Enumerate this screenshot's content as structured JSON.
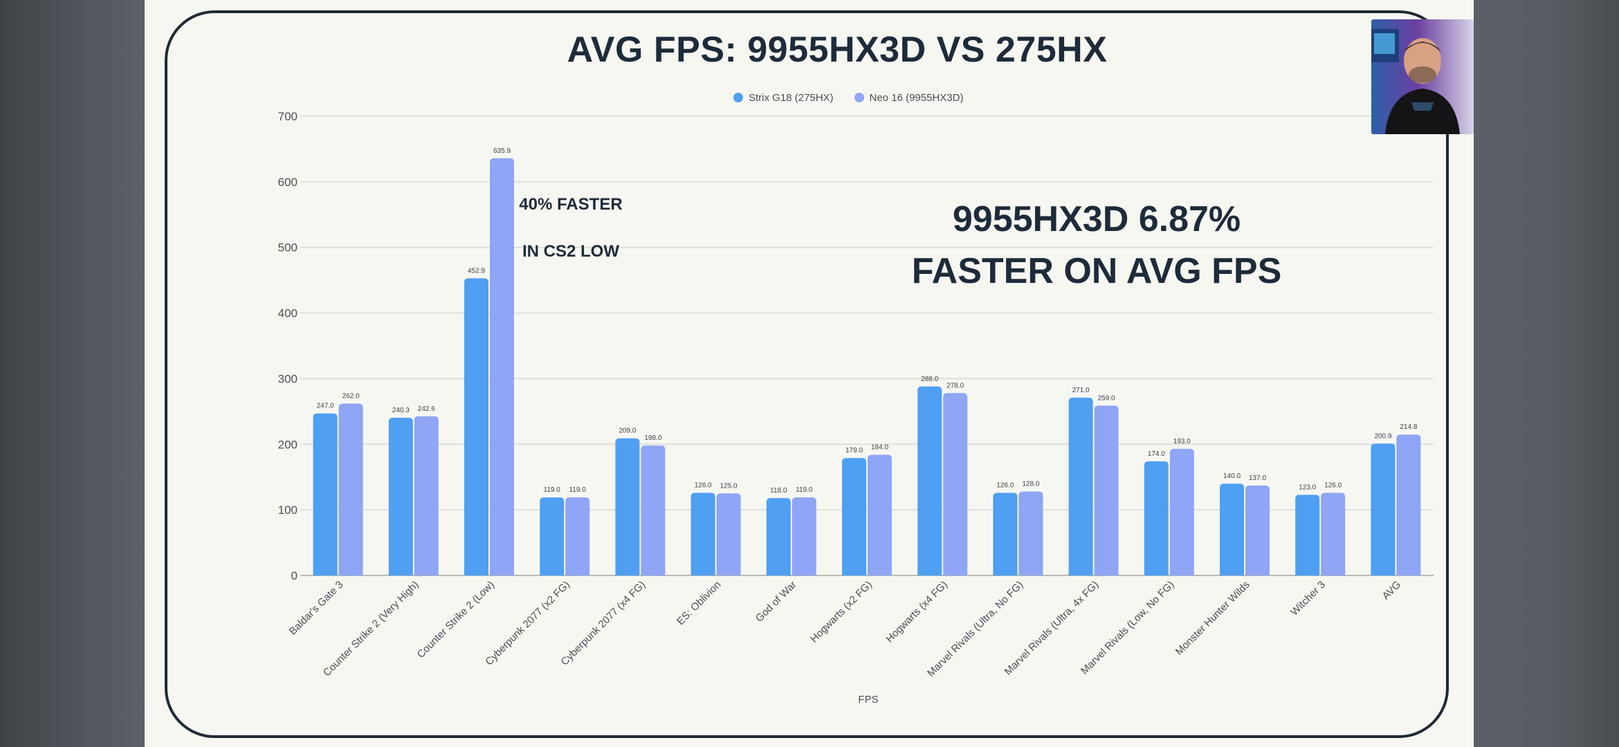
{
  "colors": {
    "strix": "#4f9ff2",
    "neo": "#8fa5f5",
    "text_dark": "#1d2b3a",
    "grid": "#dedfdc",
    "tick": "#4a4d52"
  },
  "slide": {
    "title": "AVG FPS: 9955HX3D VS 275HX",
    "annotation_line1": "40% FASTER",
    "annotation_line2": "IN CS2 LOW",
    "callout": "9955HX3D 6.87% FASTER ON AVG FPS"
  },
  "chart_data": {
    "type": "bar",
    "title": "",
    "xlabel": "FPS",
    "ylabel": "",
    "ylim": [
      0,
      700
    ],
    "yticks": [
      0,
      100,
      200,
      300,
      400,
      500,
      600,
      700
    ],
    "grid": true,
    "legend_position": "top",
    "categories": [
      "Baldar's Gate 3",
      "Counter Strike 2 (Very High)",
      "Counter Strike 2 (Low)",
      "Cyberpunk 2077 (x2 FG)",
      "Cyberpunk 2077 (x4 FG)",
      "ES: Oblivion",
      "God of War",
      "Hogwarts (x2 FG)",
      "Hogwarts (x4 FG)",
      "Marvel Rivals (Ultra, No FG)",
      "Marvel Rivals (Ultra, 4x FG)",
      "Marvel Rivals (Low, No FG)",
      "Monster Hunter Wilds",
      "Witcher 3",
      "AVG"
    ],
    "series": [
      {
        "name": "Strix G18 (275HX)",
        "color": "#4f9ff2",
        "values": [
          247.0,
          240.3,
          452.9,
          119.0,
          209.0,
          126.0,
          118.0,
          179.0,
          288.0,
          126.0,
          271.0,
          174.0,
          140.0,
          123.0,
          200.9
        ],
        "labels": [
          "247.0",
          "240.3",
          "452.9",
          "119.0",
          "209.0",
          "126.0",
          "118.0",
          "179.0",
          "288.0",
          "126.0",
          "271.0",
          "174.0",
          "140.0",
          "123.0",
          "200.9"
        ]
      },
      {
        "name": "Neo 16 (9955HX3D)",
        "color": "#8fa5f5",
        "values": [
          262.0,
          242.6,
          635.9,
          119.0,
          198.0,
          125.0,
          119.0,
          184.0,
          278.0,
          128.0,
          259.0,
          193.0,
          137.0,
          126.0,
          214.8
        ],
        "labels": [
          "262.0",
          "242.6",
          "635.9",
          "119.0",
          "198.0",
          "125.0",
          "119.0",
          "184.0",
          "278.0",
          "128.0",
          "259.0",
          "193.0",
          "137.0",
          "126.0",
          "214.8"
        ]
      }
    ]
  }
}
